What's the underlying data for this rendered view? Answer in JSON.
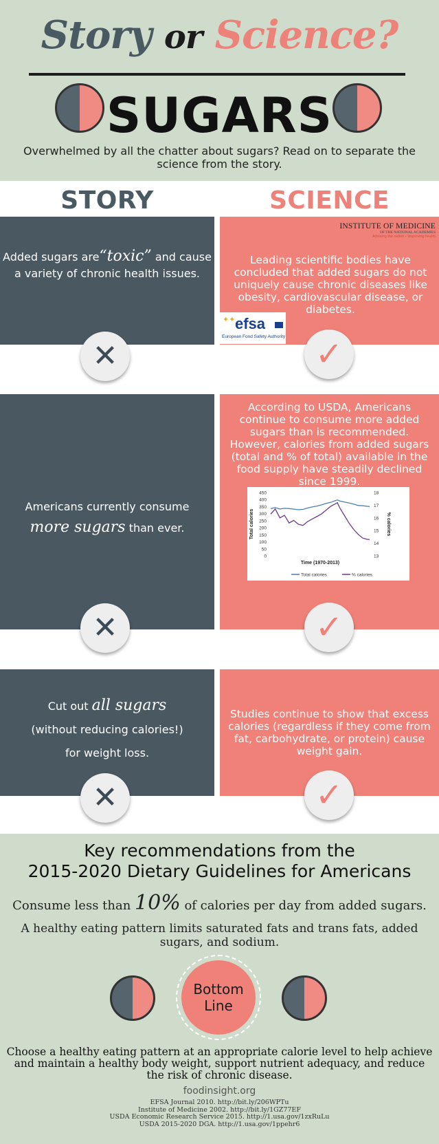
{
  "header": {
    "title_story": "Story",
    "title_or": "or",
    "title_science": "Science?",
    "topic": "SUGARS",
    "intro": "Overwhelmed by all the chatter about sugars? Read on to separate the science from the story."
  },
  "columns": {
    "story": "STORY",
    "science": "SCIENCE"
  },
  "myth1": {
    "story_a": "Added sugars are",
    "story_b": "“toxic”",
    "story_c": " and cause a variety of  chronic health issues.",
    "science": "Leading scientific bodies have concluded that added sugars do not uniquely cause chronic diseases like obesity, cardiovascular disease, or diabetes.",
    "iom_title": "INSTITUTE OF MEDICINE",
    "iom_sub": "OF THE NATIONAL ACADEMIES",
    "iom_tag": "Advising the nation • Improving health",
    "efsa_word": "efsa",
    "efsa_sub": "European Food Safety Authority"
  },
  "myth2": {
    "story_a": "Americans currently consume",
    "story_b": "more sugars",
    "story_c": " than ever.",
    "science": "According to USDA, Americans continue to consume more added sugars than is recommended. However, calories from added sugars (total and % of total) available in the food supply have steadily declined since 1999."
  },
  "myth3": {
    "story_a": "Cut out ",
    "story_b": "all sugars",
    "story_c": "(without reducing calories!)",
    "story_d": "for weight loss.",
    "science": "Studies continue to show that excess calories (regardless if they come from fat, carbohydrate, or protein) cause weight gain."
  },
  "badges": {
    "x": "✕",
    "check": "✓"
  },
  "chart_data": {
    "type": "line",
    "xlabel": "Time (1970-2013)",
    "ylabel": "Total calories",
    "y2label": "% calories",
    "ylim": [
      0,
      450
    ],
    "y2lim": [
      13,
      18
    ],
    "yticks": [
      "450",
      "400",
      "350",
      "300",
      "250",
      "200",
      "150",
      "100",
      "50",
      "0"
    ],
    "y2ticks": [
      "18",
      "17",
      "16",
      "15",
      "14",
      "13"
    ],
    "x": [
      1970,
      1972,
      1974,
      1976,
      1978,
      1980,
      1982,
      1984,
      1986,
      1988,
      1990,
      1992,
      1994,
      1996,
      1998,
      1999,
      2000,
      2002,
      2004,
      2006,
      2008,
      2010,
      2012,
      2013
    ],
    "series": [
      {
        "name": "Total calories",
        "axis": "left",
        "color": "#4a7fb5",
        "values": [
          335,
          343,
          333,
          338,
          336,
          332,
          328,
          330,
          340,
          348,
          353,
          362,
          372,
          380,
          392,
          397,
          390,
          383,
          376,
          368,
          358,
          356,
          352,
          351
        ]
      },
      {
        "name": "% calories",
        "axis": "right",
        "color": "#6b3a87",
        "values": [
          16.3,
          16.7,
          16.0,
          16.2,
          15.6,
          15.8,
          15.5,
          15.4,
          15.7,
          15.9,
          16.1,
          16.3,
          16.6,
          16.9,
          17.1,
          17.2,
          16.8,
          16.2,
          15.6,
          15.1,
          14.7,
          14.4,
          14.3,
          14.3
        ]
      }
    ],
    "legend": "bottom"
  },
  "recs": {
    "title_a": "Key recommendations from the",
    "title_b": "2015-2020 Dietary Guidelines for Americans",
    "consume_a": "Consume less than ",
    "consume_big": "10%",
    "consume_b": " of calories per day from added sugars.",
    "healthy": "A healthy eating pattern limits saturated fats and trans fats, added sugars, and sodium.",
    "bl_a": "Bottom",
    "bl_b": "Line",
    "choose": "Choose a healthy eating pattern at an appropriate calorie level to help achieve and maintain a healthy body weight, support nutrient adequacy, and reduce the risk of chronic disease."
  },
  "footer": {
    "site": "foodinsight.org",
    "refs": [
      "EFSA Journal 2010. http://bit.ly/206WPTu",
      "Institute of Medicine 2002. http://bit.ly/1GZ77EF",
      "USDA Economic Research Service 2015. http://1.usa.gov/1zxRuLu",
      "USDA 2015-2020 DGA. http://1.usa.gov/1ppehr6"
    ]
  },
  "colors": {
    "slate": "#4a5862",
    "coral": "#ef8179",
    "sage": "#cfdccb"
  }
}
